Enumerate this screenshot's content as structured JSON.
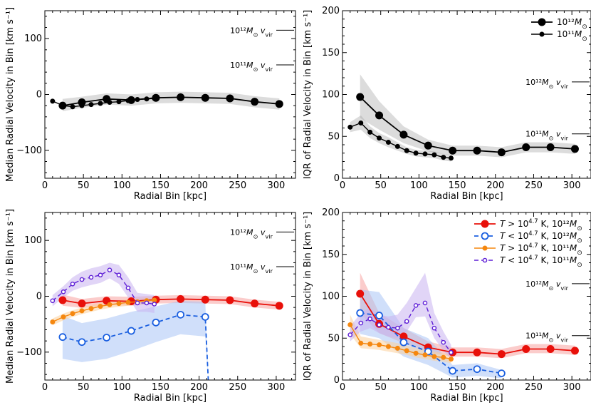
{
  "figure": {
    "subscripts": {
      "vir": "vir",
      "msun": "⊙"
    },
    "annotation_labels": {
      "m12": "10¹²M",
      "m11": "10¹¹M",
      "v": "v"
    }
  },
  "chart_data": [
    {
      "id": "top-left",
      "type": "line",
      "xlabel": "Radial Bin [kpc]",
      "ylabel": "Median Radial Velocity in Bin [km s⁻¹]",
      "xlim": [
        0,
        325
      ],
      "ylim": [
        -150,
        150
      ],
      "xticks": [
        0,
        50,
        100,
        150,
        200,
        250,
        300
      ],
      "yticks": [
        -100,
        0,
        100
      ],
      "annotations": [
        {
          "label": "10¹²M⊙ vvir",
          "mass": "10¹²",
          "y": 115
        },
        {
          "label": "10¹¹M⊙ vvir",
          "mass": "10¹¹",
          "y": 53
        }
      ],
      "series": [
        {
          "name": "10¹²M⊙",
          "color": "#000000",
          "marker": "large",
          "style": "solid",
          "x": [
            23,
            48,
            80,
            112,
            144,
            176,
            208,
            240,
            272,
            304
          ],
          "y": [
            -20,
            -14,
            -8,
            -10,
            -6,
            -5,
            -6,
            -7,
            -13,
            -17
          ],
          "band": [
            [
              -30,
              -8
            ],
            [
              -24,
              -4
            ],
            [
              -18,
              2
            ],
            [
              -20,
              0
            ],
            [
              -16,
              4
            ],
            [
              -15,
              5
            ],
            [
              -16,
              4
            ],
            [
              -17,
              3
            ],
            [
              -23,
              -3
            ],
            [
              -27,
              -7
            ]
          ]
        },
        {
          "name": "10¹¹M⊙",
          "color": "#000000",
          "marker": "small",
          "style": "solid",
          "x": [
            10,
            24,
            36,
            48,
            60,
            72,
            84,
            96,
            108,
            120,
            132,
            142
          ],
          "y": [
            -12,
            -20,
            -22,
            -20,
            -18,
            -16,
            -14,
            -13,
            -11,
            -9,
            -8,
            -7
          ],
          "band": null
        }
      ]
    },
    {
      "id": "top-right",
      "type": "line",
      "xlabel": "Radial Bin [kpc]",
      "ylabel": "IQR of Radial Velocity in Bin [km s⁻¹]",
      "xlim": [
        0,
        325
      ],
      "ylim": [
        0,
        200
      ],
      "xticks": [
        0,
        50,
        100,
        150,
        200,
        250,
        300
      ],
      "yticks": [
        0,
        50,
        100,
        150,
        200
      ],
      "annotations": [
        {
          "label": "10¹²M⊙ vvir",
          "mass": "10¹²",
          "y": 115
        },
        {
          "label": "10¹¹M⊙ vvir",
          "mass": "10¹¹",
          "y": 53
        }
      ],
      "legend": {
        "position": "upper-right",
        "entries": [
          "10¹²M⊙",
          "10¹¹M⊙"
        ]
      },
      "series": [
        {
          "name": "10¹²M⊙",
          "color": "#000000",
          "marker": "large",
          "style": "solid",
          "x": [
            23,
            48,
            80,
            112,
            144,
            176,
            208,
            240,
            272,
            304
          ],
          "y": [
            97,
            75,
            52,
            39,
            33,
            33,
            31,
            37,
            37,
            35
          ],
          "band": [
            [
              72,
              124
            ],
            [
              58,
              92
            ],
            [
              42,
              62
            ],
            [
              32,
              46
            ],
            [
              27,
              39
            ],
            [
              27,
              39
            ],
            [
              25,
              37
            ],
            [
              31,
              43
            ],
            [
              31,
              43
            ],
            [
              29,
              41
            ]
          ]
        },
        {
          "name": "10¹¹M⊙",
          "color": "#000000",
          "marker": "small",
          "style": "solid",
          "x": [
            10,
            24,
            36,
            48,
            60,
            72,
            84,
            96,
            108,
            120,
            132,
            142
          ],
          "y": [
            61,
            66,
            55,
            48,
            43,
            38,
            33,
            30,
            29,
            28,
            25,
            24
          ],
          "band": [
            [
              55,
              67
            ],
            [
              58,
              75
            ],
            [
              48,
              62
            ],
            [
              42,
              54
            ],
            [
              37,
              49
            ],
            [
              33,
              43
            ],
            [
              29,
              37
            ],
            [
              26,
              34
            ],
            [
              25,
              33
            ],
            [
              24,
              32
            ],
            [
              21,
              29
            ],
            [
              20,
              28
            ]
          ]
        }
      ]
    },
    {
      "id": "bottom-left",
      "type": "line",
      "xlabel": "Radial Bin [kpc]",
      "ylabel": "Median Radial Velocity in Bin [km s⁻¹]",
      "xlim": [
        0,
        325
      ],
      "ylim": [
        -150,
        150
      ],
      "xticks": [
        0,
        50,
        100,
        150,
        200,
        250,
        300
      ],
      "yticks": [
        -100,
        0,
        100
      ],
      "annotations": [
        {
          "label": "10¹²M⊙ vvir",
          "mass": "10¹²",
          "y": 115
        },
        {
          "label": "10¹¹M⊙ vvir",
          "mass": "10¹¹",
          "y": 53
        }
      ],
      "series": [
        {
          "name": "T > 10^4.7 K, 10¹²M⊙",
          "color": "#e8100a",
          "band_color": "#f7a3a0",
          "marker": "large",
          "style": "solid",
          "x": [
            23,
            48,
            80,
            112,
            144,
            176,
            208,
            240,
            272,
            304
          ],
          "y": [
            -7,
            -13,
            -8,
            -9,
            -6,
            -5,
            -6,
            -7,
            -13,
            -17
          ],
          "band": [
            [
              -17,
              3
            ],
            [
              -21,
              -5
            ],
            [
              -16,
              0
            ],
            [
              -17,
              -1
            ],
            [
              -13,
              1
            ],
            [
              -12,
              2
            ],
            [
              -13,
              1
            ],
            [
              -14,
              0
            ],
            [
              -20,
              -6
            ],
            [
              -24,
              -10
            ]
          ]
        },
        {
          "name": "T < 10^4.7 K, 10¹²M⊙",
          "color": "#1a5fe0",
          "band_color": "#a9c5f5",
          "marker": "large-open",
          "style": "dashed",
          "x": [
            23,
            48,
            80,
            112,
            144,
            176,
            208,
            212
          ],
          "y": [
            -73,
            -82,
            -74,
            -62,
            -47,
            -33,
            -37,
            -152
          ],
          "band": [
            [
              -112,
              -35
            ],
            [
              -118,
              -48
            ],
            [
              -112,
              -40
            ],
            [
              -98,
              -28
            ],
            [
              -82,
              -18
            ],
            [
              -68,
              -8
            ],
            [
              -72,
              -10
            ],
            [
              -152,
              -152
            ]
          ]
        },
        {
          "name": "T > 10^4.7 K, 10¹¹M⊙",
          "color": "#f5870f",
          "band_color": "#fbcf9b",
          "marker": "small",
          "style": "solid",
          "x": [
            10,
            24,
            36,
            48,
            60,
            72,
            84,
            96,
            108,
            120,
            132,
            142
          ],
          "y": [
            -46,
            -37,
            -31,
            -26,
            -22,
            -18,
            -15,
            -13,
            -11,
            -10,
            -8,
            -7
          ],
          "band": [
            [
              -52,
              -40
            ],
            [
              -43,
              -31
            ],
            [
              -37,
              -25
            ],
            [
              -32,
              -20
            ],
            [
              -28,
              -16
            ],
            [
              -24,
              -12
            ],
            [
              -21,
              -9
            ],
            [
              -19,
              -7
            ],
            [
              -17,
              -5
            ],
            [
              -16,
              -4
            ],
            [
              -14,
              -2
            ],
            [
              -13,
              -1
            ]
          ]
        },
        {
          "name": "T < 10^4.7 K, 10¹¹M⊙",
          "color": "#5e1ed6",
          "band_color": "#c9b3f0",
          "marker": "small-open",
          "style": "dashed",
          "x": [
            10,
            24,
            36,
            48,
            60,
            72,
            84,
            96,
            108,
            120,
            132,
            142
          ],
          "y": [
            -8,
            8,
            22,
            30,
            34,
            38,
            47,
            38,
            15,
            -12,
            -12,
            -14
          ],
          "band": [
            [
              -18,
              2
            ],
            [
              -2,
              18
            ],
            [
              10,
              34
            ],
            [
              16,
              44
            ],
            [
              20,
              50
            ],
            [
              24,
              54
            ],
            [
              32,
              60
            ],
            [
              22,
              56
            ],
            [
              -2,
              34
            ],
            [
              -28,
              6
            ],
            [
              -28,
              4
            ],
            [
              -30,
              2
            ]
          ]
        }
      ]
    },
    {
      "id": "bottom-right",
      "type": "line",
      "xlabel": "Radial Bin [kpc]",
      "ylabel": "IQR of Radial Velocity in Bin [km s⁻¹]",
      "xlim": [
        0,
        325
      ],
      "ylim": [
        0,
        200
      ],
      "xticks": [
        0,
        50,
        100,
        150,
        200,
        250,
        300
      ],
      "yticks": [
        0,
        50,
        100,
        150,
        200
      ],
      "annotations": [
        {
          "label": "10¹²M⊙ vvir",
          "mass": "10¹²",
          "y": 115
        },
        {
          "label": "10¹¹M⊙ vvir",
          "mass": "10¹¹",
          "y": 53
        }
      ],
      "legend": {
        "position": "upper-right",
        "entries": [
          "T > 10^4.7 K, 10¹²M⊙",
          "T < 10^4.7 K, 10¹²M⊙",
          "T > 10^4.7 K, 10¹¹M⊙",
          "T < 10^4.7 K, 10¹¹M⊙"
        ]
      },
      "series": [
        {
          "name": "T > 10^4.7 K, 10¹²M⊙",
          "color": "#e8100a",
          "band_color": "#f7a3a0",
          "marker": "large",
          "style": "solid",
          "x": [
            23,
            48,
            80,
            112,
            144,
            176,
            208,
            240,
            272,
            304
          ],
          "y": [
            103,
            67,
            52,
            39,
            33,
            33,
            31,
            37,
            37,
            35
          ],
          "band": [
            [
              80,
              128
            ],
            [
              56,
              80
            ],
            [
              44,
              62
            ],
            [
              33,
              46
            ],
            [
              28,
              39
            ],
            [
              28,
              39
            ],
            [
              26,
              37
            ],
            [
              32,
              43
            ],
            [
              32,
              43
            ],
            [
              30,
              41
            ]
          ]
        },
        {
          "name": "T < 10^4.7 K, 10¹²M⊙",
          "color": "#1a5fe0",
          "band_color": "#a9c5f5",
          "marker": "large-open",
          "style": "dashed",
          "x": [
            23,
            48,
            80,
            112,
            144,
            176,
            208
          ],
          "y": [
            80,
            77,
            45,
            34,
            11,
            13,
            8
          ],
          "band": [
            [
              55,
              108
            ],
            [
              50,
              105
            ],
            [
              28,
              62
            ],
            [
              18,
              50
            ],
            [
              3,
              18
            ],
            [
              5,
              20
            ],
            [
              2,
              12
            ]
          ]
        },
        {
          "name": "T > 10^4.7 K, 10¹¹M⊙",
          "color": "#f5870f",
          "band_color": "#fbcf9b",
          "marker": "small",
          "style": "solid",
          "x": [
            10,
            24,
            36,
            48,
            60,
            72,
            84,
            96,
            108,
            120,
            132,
            142
          ],
          "y": [
            66,
            44,
            43,
            42,
            40,
            38,
            35,
            32,
            30,
            28,
            27,
            25
          ],
          "band": [
            [
              55,
              78
            ],
            [
              38,
              52
            ],
            [
              37,
              50
            ],
            [
              36,
              48
            ],
            [
              34,
              46
            ],
            [
              32,
              44
            ],
            [
              30,
              41
            ],
            [
              27,
              38
            ],
            [
              25,
              36
            ],
            [
              23,
              34
            ],
            [
              22,
              32
            ],
            [
              20,
              30
            ]
          ]
        },
        {
          "name": "T < 10^4.7 K, 10¹¹M⊙",
          "color": "#5e1ed6",
          "band_color": "#c9b3f0",
          "marker": "small-open",
          "style": "dashed",
          "x": [
            10,
            24,
            36,
            48,
            60,
            72,
            84,
            96,
            108,
            120,
            132,
            142
          ],
          "y": [
            54,
            68,
            73,
            66,
            63,
            62,
            70,
            89,
            92,
            62,
            45,
            33
          ],
          "band": [
            [
              46,
              64
            ],
            [
              58,
              80
            ],
            [
              62,
              86
            ],
            [
              56,
              78
            ],
            [
              52,
              76
            ],
            [
              50,
              78
            ],
            [
              58,
              92
            ],
            [
              75,
              110
            ],
            [
              76,
              128
            ],
            [
              50,
              80
            ],
            [
              35,
              58
            ],
            [
              25,
              42
            ]
          ]
        }
      ]
    }
  ]
}
